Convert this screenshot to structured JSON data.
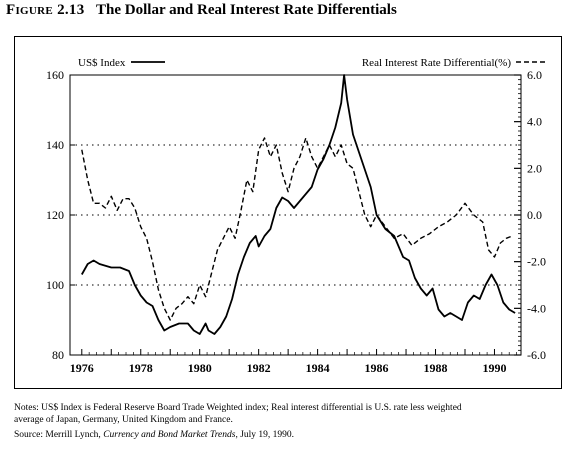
{
  "figure": {
    "label": "Figure 2.13",
    "title": "The Dollar and Real Interest Rate Differentials"
  },
  "notes": {
    "line1": "Notes: US$ Index is Federal Reserve Board Trade Weighted index; Real interest differential is U.S. rate less weighted",
    "line2": "average of Japan, Germany, United Kingdom and France.",
    "source_prefix": "Source: Merrill Lynch, ",
    "source_publication": "Currency and Bond Market Trends",
    "source_suffix": ", July 19, 1990."
  },
  "chart_data": {
    "type": "line",
    "x_ticks": [
      "1976",
      "1978",
      "1980",
      "1982",
      "1984",
      "1986",
      "1988",
      "1990"
    ],
    "xlim": [
      1975.6,
      1990.9
    ],
    "left_axis": {
      "ylim": [
        80,
        160
      ],
      "ticks": [
        "160",
        "140",
        "120",
        "100",
        "80"
      ],
      "tick_values": [
        160,
        140,
        120,
        100,
        80
      ]
    },
    "right_axis": {
      "ylim": [
        -6.0,
        6.0
      ],
      "ticks": [
        "6.0",
        "4.0",
        "2.0",
        "0.0",
        "-2.0",
        "-4.0",
        "-6.0"
      ],
      "tick_values": [
        6,
        4,
        2,
        0,
        -2,
        -4,
        -6
      ]
    },
    "grid": {
      "dotted_horizontal_at_left_values": [
        140,
        120,
        100
      ]
    },
    "legend_placement": "top",
    "series": [
      {
        "name": "US$ Index",
        "axis": "left",
        "style": "solid",
        "x": [
          1976.0,
          1976.2,
          1976.4,
          1976.6,
          1977.0,
          1977.3,
          1977.6,
          1977.8,
          1978.0,
          1978.2,
          1978.4,
          1978.6,
          1978.8,
          1979.0,
          1979.3,
          1979.6,
          1979.8,
          1980.0,
          1980.2,
          1980.3,
          1980.5,
          1980.7,
          1980.9,
          1981.1,
          1981.3,
          1981.5,
          1981.7,
          1981.9,
          1982.0,
          1982.2,
          1982.4,
          1982.6,
          1982.8,
          1983.0,
          1983.2,
          1983.4,
          1983.6,
          1983.8,
          1984.0,
          1984.2,
          1984.4,
          1984.6,
          1984.8,
          1984.9,
          1985.0,
          1985.2,
          1985.4,
          1985.6,
          1985.8,
          1986.0,
          1986.3,
          1986.6,
          1986.9,
          1987.1,
          1987.3,
          1987.5,
          1987.7,
          1987.9,
          1988.1,
          1988.3,
          1988.5,
          1988.7,
          1988.9,
          1989.1,
          1989.3,
          1989.5,
          1989.7,
          1989.9,
          1990.1,
          1990.3,
          1990.5,
          1990.7
        ],
        "values": [
          103,
          106,
          107,
          106,
          105,
          105,
          104,
          100,
          97,
          95,
          94,
          90,
          87,
          88,
          89,
          89,
          87,
          86,
          89,
          87,
          86,
          88,
          91,
          96,
          103,
          108,
          112,
          114,
          111,
          114,
          116,
          122,
          125,
          124,
          122,
          124,
          126,
          128,
          133,
          136,
          140,
          145,
          152,
          160,
          153,
          143,
          138,
          133,
          128,
          120,
          116,
          114,
          108,
          107,
          102,
          99,
          97,
          99,
          93,
          91,
          92,
          91,
          90,
          95,
          97,
          96,
          100,
          103,
          100,
          95,
          93,
          92
        ]
      },
      {
        "name": "Real Interest Rate Differential(%)",
        "axis": "right",
        "style": "dashed",
        "x": [
          1976.0,
          1976.2,
          1976.4,
          1976.6,
          1976.8,
          1977.0,
          1977.2,
          1977.4,
          1977.6,
          1977.8,
          1978.0,
          1978.2,
          1978.4,
          1978.6,
          1978.8,
          1979.0,
          1979.2,
          1979.4,
          1979.6,
          1979.8,
          1980.0,
          1980.2,
          1980.4,
          1980.6,
          1980.8,
          1981.0,
          1981.2,
          1981.4,
          1981.6,
          1981.8,
          1982.0,
          1982.2,
          1982.4,
          1982.6,
          1982.8,
          1983.0,
          1983.2,
          1983.4,
          1983.6,
          1983.8,
          1984.0,
          1984.2,
          1984.4,
          1984.6,
          1984.8,
          1985.0,
          1985.2,
          1985.4,
          1985.6,
          1985.8,
          1986.0,
          1986.3,
          1986.6,
          1986.9,
          1987.2,
          1987.5,
          1987.8,
          1988.1,
          1988.4,
          1988.7,
          1989.0,
          1989.3,
          1989.6,
          1989.8,
          1990.0,
          1990.2,
          1990.4,
          1990.6
        ],
        "values": [
          2.8,
          1.5,
          0.5,
          0.5,
          0.3,
          0.8,
          0.2,
          0.7,
          0.7,
          0.3,
          -0.5,
          -1.0,
          -2.0,
          -3.2,
          -4.0,
          -4.5,
          -4.0,
          -3.8,
          -3.5,
          -3.8,
          -3.0,
          -3.5,
          -2.5,
          -1.5,
          -1.0,
          -0.5,
          -1.0,
          0.2,
          1.5,
          1.0,
          2.8,
          3.3,
          2.5,
          3.0,
          1.8,
          1.0,
          2.0,
          2.5,
          3.3,
          2.5,
          2.0,
          2.5,
          3.0,
          2.5,
          3.0,
          2.2,
          2.0,
          1.0,
          0.0,
          -0.5,
          0.0,
          -0.5,
          -1.0,
          -0.8,
          -1.3,
          -1.0,
          -0.8,
          -0.5,
          -0.3,
          0.0,
          0.5,
          0.0,
          -0.3,
          -1.5,
          -1.8,
          -1.2,
          -1.0,
          -0.9
        ]
      }
    ]
  }
}
